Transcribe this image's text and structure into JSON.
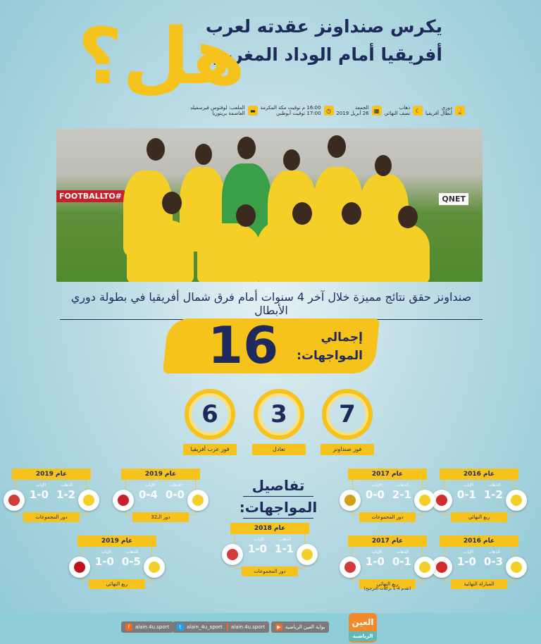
{
  "header": {
    "title_line1": "يكرس صنداونز عقدته لعرب",
    "title_line2": "أفريقيا أمام الوداد المغربي",
    "big_question": "هل؟"
  },
  "info": [
    {
      "icon": "trophy-icon",
      "line1": "دوري",
      "line2": "أبطال أفريقيا"
    },
    {
      "icon": "moon-icon",
      "line1": "ذهاب",
      "line2": "نصف النهائي"
    },
    {
      "icon": "calendar-icon",
      "line1": "الجمعة",
      "line2": "26 أبريل 2019"
    },
    {
      "icon": "clock-icon",
      "line1": "16:00 م توقيت مكة المكرمة",
      "line2": "17:00 توقيت أبوظبي"
    },
    {
      "icon": "stadium-icon",
      "line1": "الملعب: لوفتوس فيرسفيلد",
      "line2": "العاصمة بريتوريا"
    }
  ],
  "photo": {
    "banner": "#FOOTBALLTO",
    "sponsor": "QNET"
  },
  "subtitle": "صنداونز حقق نتائج مميزة خلال آخر 4 سنوات أمام فرق شمال أفريقيا في بطولة دوري الأبطال",
  "total": {
    "label_line1": "إجمالي",
    "label_line2": "المواجهات:",
    "value": "16"
  },
  "stats": [
    {
      "value": "7",
      "label": "فوز صنداونز"
    },
    {
      "value": "3",
      "label": "تعادل"
    },
    {
      "value": "6",
      "label": "فوز عرب أفريقيا"
    }
  ],
  "details_title": {
    "line1": "تفاصيل",
    "line2": "المواجهات:"
  },
  "leg_labels": {
    "first": "الذهاب",
    "second": "الإياب"
  },
  "matches": [
    {
      "year": "عام 2016",
      "first": "1-2",
      "second": "0-1",
      "round": "ربع النهائي",
      "opponent_color": "#d22b2b"
    },
    {
      "year": "عام 2017",
      "first": "2-1",
      "second": "0-0",
      "round": "دور المجموعات",
      "opponent_color": "#d4a017"
    },
    {
      "year": "عام 2019",
      "first": "0-0",
      "second": "0-4",
      "round": "دور الـ32",
      "opponent_color": "#c8202a"
    },
    {
      "year": "عام 2019",
      "first": "1-2",
      "second": "1-0",
      "round": "دور المجموعات",
      "opponent_color": "#d33a3a"
    },
    {
      "year": "عام 2016",
      "first": "0-3",
      "second": "1-0",
      "round": "المباراة النهائية",
      "opponent_color": "#d22b2b"
    },
    {
      "year": "عام 2017",
      "first": "0-1",
      "second": "1-0",
      "round": "ربع النهائي",
      "opponent_color": "#d33a3a"
    },
    {
      "year": "عام 2018",
      "first": "1-1",
      "second": "1-0",
      "round": "دور المجموعات",
      "opponent_color": "#d33a3a"
    },
    {
      "year": "عام 2019",
      "first": "0-5",
      "second": "1-0",
      "round": "ربع النهائي",
      "opponent_color": "#c0141c"
    }
  ],
  "note": "(تقدم 4-1 بركلات الترجيح)",
  "footer": {
    "brand": "العين",
    "brand_sub": "الرياضية",
    "social": [
      {
        "icon": "youtube-icon",
        "text": "بوابة العين الرياضية"
      },
      {
        "icon": "instagram-icon",
        "text": "alain.4u.sport"
      },
      {
        "icon": "twitter-icon",
        "text": "alain_4u_sport"
      },
      {
        "icon": "facebook-icon",
        "text": "alain.4u.sport"
      }
    ]
  },
  "colors": {
    "accent": "#f6c21c",
    "navy": "#1f2a5c",
    "sundowns": "#f3cf28"
  }
}
